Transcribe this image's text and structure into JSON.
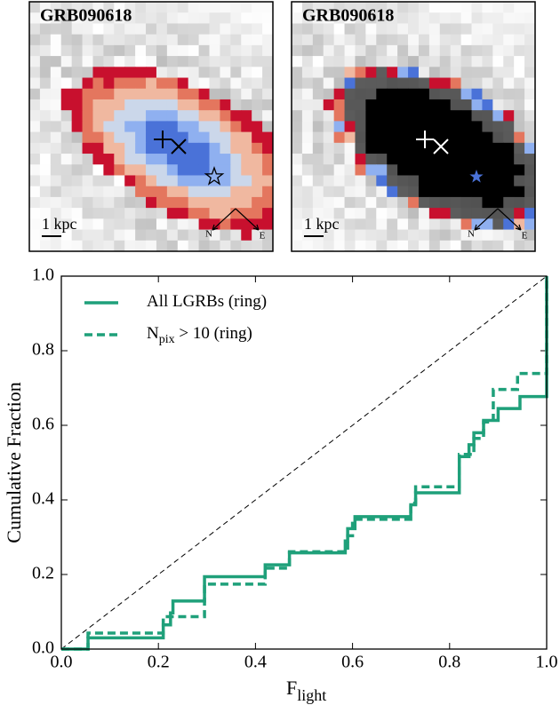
{
  "panels": [
    {
      "title": "GRB090618",
      "scale_label": "1 kpc",
      "north": "N",
      "east": "E"
    },
    {
      "title": "GRB090618",
      "scale_label": "1 kpc",
      "north": "N",
      "east": "E"
    }
  ],
  "chart_data": {
    "type": "step",
    "ylabel": "Cumulative Fraction",
    "xlabel": {
      "main": "F",
      "sub": "light"
    },
    "xlim": [
      0,
      1
    ],
    "ylim": [
      0,
      1
    ],
    "xticks": [
      {
        "value": 0,
        "label": "0.0"
      },
      {
        "value": 0.2,
        "label": "0.2"
      },
      {
        "value": 0.4,
        "label": "0.4"
      },
      {
        "value": 0.6,
        "label": "0.6"
      },
      {
        "value": 0.8,
        "label": "0.8"
      },
      {
        "value": 1,
        "label": "1.0"
      }
    ],
    "yticks": [
      {
        "value": 0,
        "label": "0.0"
      },
      {
        "value": 0.2,
        "label": "0.2"
      },
      {
        "value": 0.4,
        "label": "0.4"
      },
      {
        "value": 0.6,
        "label": "0.6"
      },
      {
        "value": 0.8,
        "label": "0.8"
      },
      {
        "value": 1,
        "label": "1.0"
      }
    ],
    "diagonal": true,
    "legend": "upper left",
    "series": [
      {
        "name": {
          "main": "All LGRBs (ring)"
        },
        "color": "#1fa07a",
        "dash": false,
        "x": [
          0,
          0.055,
          0.21,
          0.225,
          0.23,
          0.295,
          0.42,
          0.47,
          0.585,
          0.59,
          0.605,
          0.72,
          0.73,
          0.82,
          0.84,
          0.85,
          0.87,
          0.9,
          0.945,
          1.0
        ],
        "values": [
          0,
          0.03,
          0.065,
          0.097,
          0.129,
          0.194,
          0.226,
          0.258,
          0.29,
          0.323,
          0.355,
          0.387,
          0.419,
          0.516,
          0.548,
          0.58,
          0.613,
          0.645,
          0.677,
          1.0
        ]
      },
      {
        "name": {
          "main": "N",
          "sub": "pix",
          "rest": " > 10 (ring)"
        },
        "color": "#1fa07a",
        "dash": true,
        "x": [
          0,
          0.055,
          0.21,
          0.295,
          0.42,
          0.47,
          0.59,
          0.6,
          0.72,
          0.73,
          0.82,
          0.85,
          0.87,
          0.89,
          0.94,
          1.0
        ],
        "values": [
          0,
          0.043,
          0.087,
          0.174,
          0.217,
          0.261,
          0.304,
          0.348,
          0.391,
          0.435,
          0.522,
          0.565,
          0.609,
          0.696,
          0.739,
          1.0
        ]
      }
    ]
  }
}
